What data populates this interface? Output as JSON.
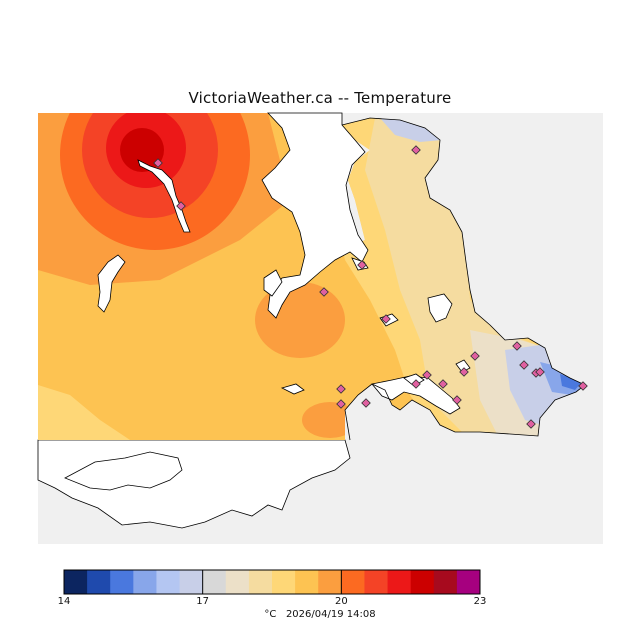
{
  "map": {
    "title": "VictoriaWeather.ca -- Temperature",
    "unit": "°C",
    "timestamp": "2026/04/19 14:08",
    "colors": {
      "land_background": "#f0f0f0",
      "water": "#ffffff",
      "coastline": "#000000",
      "station_marker": "#e060a0"
    }
  },
  "colorbar": {
    "colors": [
      "#0c2560",
      "#1f4aad",
      "#4a78de",
      "#88a6ea",
      "#b4c6f2",
      "#c8cfe8",
      "#d8d8d8",
      "#ece0c8",
      "#f5dca0",
      "#fed777",
      "#fdc352",
      "#fb9e3f",
      "#fc6a21",
      "#f44326",
      "#ec1818",
      "#cc0000",
      "#a70a1e",
      "#a6007f"
    ],
    "ticks": [
      {
        "label": "14",
        "value": 14
      },
      {
        "label": "17",
        "value": 17
      },
      {
        "label": "20",
        "value": 20
      },
      {
        "label": "23",
        "value": 23
      }
    ],
    "range": [
      14,
      23
    ]
  }
}
